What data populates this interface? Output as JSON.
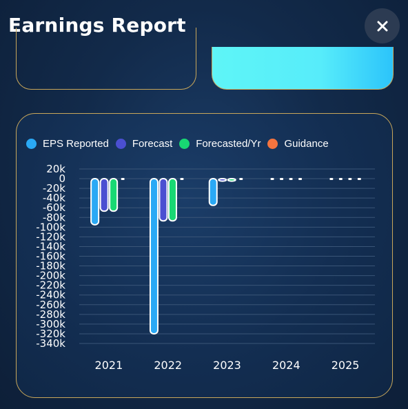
{
  "header": {
    "title": "Earnings Report"
  },
  "close_button": {
    "icon": "close-icon"
  },
  "colors": {
    "eps_reported": "#2aa9f5",
    "forecast": "#4b4fd1",
    "forecasted_yr": "#18d873",
    "guidance": "#f4743f",
    "card_border": "#c9a75a"
  },
  "chart_data": {
    "type": "bar",
    "categories": [
      "2021",
      "2022",
      "2023",
      "2024",
      "2025"
    ],
    "series": [
      {
        "name": "EPS Reported",
        "values": [
          -95,
          -320,
          -55,
          null,
          null
        ]
      },
      {
        "name": "Forecast",
        "values": [
          -67,
          -87,
          -5,
          null,
          null
        ]
      },
      {
        "name": "Forecasted/Yr",
        "values": [
          -67,
          -87,
          -5,
          null,
          null
        ]
      },
      {
        "name": "Guidance",
        "values": [
          0,
          0,
          0,
          0,
          0
        ]
      }
    ],
    "y_ticks": [
      "20k",
      "0",
      "-20k",
      "-40k",
      "-60k",
      "-80k",
      "-100k",
      "-120k",
      "-140k",
      "-160k",
      "-180k",
      "-200k",
      "-220k",
      "-240k",
      "-260k",
      "-280k",
      "-300k",
      "-320k",
      "-340k"
    ],
    "ylim": [
      -340,
      20
    ],
    "grid": true,
    "legend_position": "top-left"
  }
}
